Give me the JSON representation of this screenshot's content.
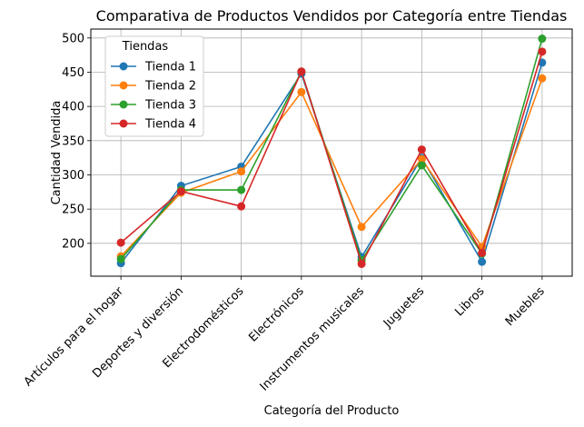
{
  "chart_data": {
    "type": "line",
    "title": "Comparativa de Productos Vendidos por Categoría entre Tiendas",
    "xlabel": "Categoría del Producto",
    "ylabel": "Cantidad Vendida",
    "categories": [
      "Artículos para el hogar",
      "Deportes y diversión",
      "Electrodomésticos",
      "Electrónicos",
      "Instrumentos musicales",
      "Juguetes",
      "Libros",
      "Muebles"
    ],
    "ylim": [
      152,
      513
    ],
    "yticks": [
      200,
      250,
      300,
      350,
      400,
      450,
      500
    ],
    "grid": true,
    "legend": {
      "title": "Tiendas",
      "placement": "top-left"
    },
    "series": [
      {
        "name": "Tienda 1",
        "color": "#1f77b4",
        "values": [
          171,
          284,
          312,
          448,
          180,
          325,
          173,
          464
        ]
      },
      {
        "name": "Tienda 2",
        "color": "#ff7f0e",
        "values": [
          181,
          274,
          305,
          421,
          224,
          323,
          195,
          441
        ]
      },
      {
        "name": "Tienda 3",
        "color": "#2ca02c",
        "values": [
          177,
          278,
          278,
          451,
          175,
          314,
          185,
          499
        ]
      },
      {
        "name": "Tienda 4",
        "color": "#d62728",
        "values": [
          201,
          276,
          254,
          451,
          170,
          337,
          186,
          480
        ]
      }
    ]
  }
}
